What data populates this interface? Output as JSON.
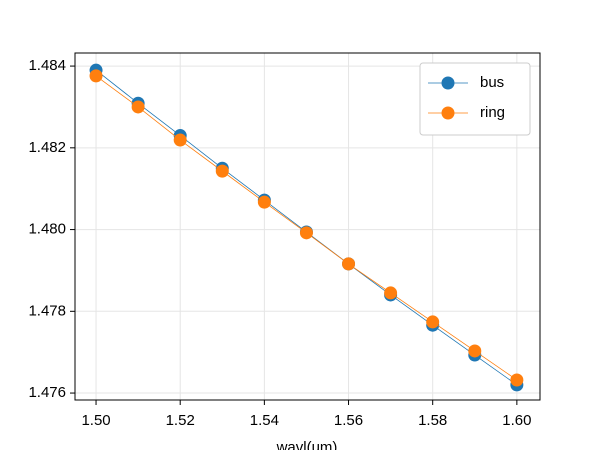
{
  "chart_data": {
    "type": "line",
    "x_label": "wavl(um)",
    "x": [
      1.5,
      1.51,
      1.52,
      1.53,
      1.54,
      1.55,
      1.56,
      1.57,
      1.58,
      1.59,
      1.6
    ],
    "series": [
      {
        "name": "bus",
        "color": "#1f77b4",
        "values": [
          1.4839,
          1.48309,
          1.4823,
          1.4815,
          1.48072,
          1.47994,
          1.47916,
          1.4784,
          1.47766,
          1.47693,
          1.4762
        ]
      },
      {
        "name": "ring",
        "color": "#ff7f0e",
        "values": [
          1.48376,
          1.483,
          1.48219,
          1.48143,
          1.48067,
          1.47992,
          1.47916,
          1.47845,
          1.47774,
          1.47703,
          1.47632
        ]
      }
    ],
    "xlim": [
      1.495,
      1.6055
    ],
    "ylim": [
      1.47583,
      1.48432
    ],
    "xticks": [
      {
        "value": 1.5,
        "label": "1.50"
      },
      1.52,
      1.54,
      1.56,
      1.58,
      {
        "value": 1.6,
        "label": "1.60"
      }
    ],
    "yticks": [
      1.476,
      1.478,
      {
        "value": 1.48,
        "label": "1.480"
      },
      1.482,
      1.484
    ],
    "grid": true,
    "legend": "upper right"
  }
}
